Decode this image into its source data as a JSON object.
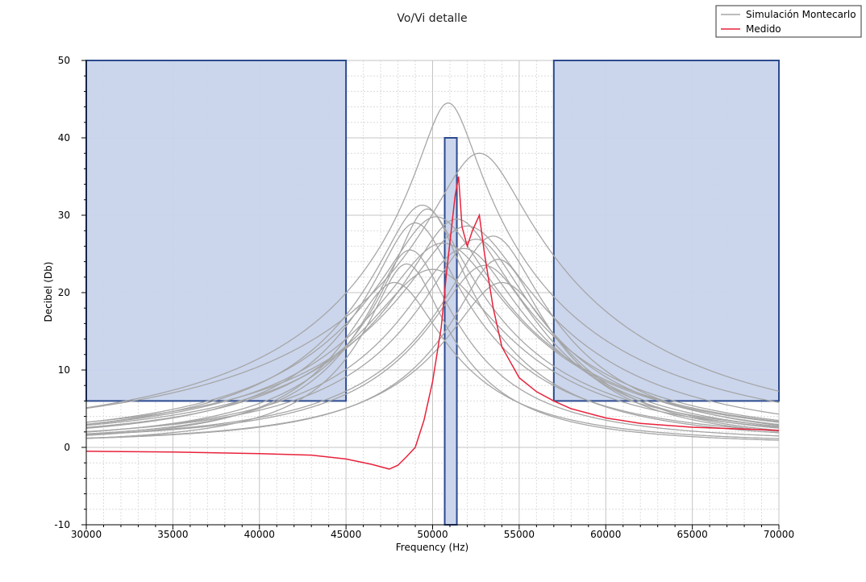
{
  "chart_data": {
    "type": "line",
    "title": "Vo/Vi detalle",
    "xlabel": "Frequency (Hz)",
    "ylabel": "Decibel (Db)",
    "xlim": [
      30000,
      70000
    ],
    "ylim": [
      -10,
      50
    ],
    "x_ticks": [
      "30000",
      "35000",
      "40000",
      "45000",
      "50000",
      "55000",
      "60000",
      "65000",
      "70000"
    ],
    "y_ticks": [
      "-10",
      "0",
      "10",
      "20",
      "30",
      "40",
      "50"
    ],
    "grid": true,
    "legend": {
      "placement": "top-right",
      "entries": [
        {
          "label": "Simulación Montecarlo",
          "color": "#a6a6a6"
        },
        {
          "label": "Medido",
          "color": "#e8223c"
        }
      ]
    },
    "regions": [
      {
        "x": [
          30000,
          45000
        ],
        "y": [
          6,
          50
        ]
      },
      {
        "x": [
          57000,
          70000
        ],
        "y": [
          6,
          50
        ]
      },
      {
        "x": [
          50700,
          51400
        ],
        "y": [
          -10,
          40
        ]
      }
    ],
    "region_colors": {
      "fill": "#c8d4ec",
      "edge": "#2c4a8e"
    },
    "montecarlo": {
      "color": "#a6a6a6",
      "curves": [
        {
          "f0": 50900,
          "peak": 44,
          "bw": 1400,
          "base": 0.5
        },
        {
          "f0": 52700,
          "peak": 37.5,
          "bw": 2200,
          "base": 0.5
        },
        {
          "f0": 49700,
          "peak": 30.5,
          "bw": 1600,
          "base": 0.3
        },
        {
          "f0": 48700,
          "peak": 25,
          "bw": 1800,
          "base": 0.5
        },
        {
          "f0": 48500,
          "peak": 23.5,
          "bw": 1700,
          "base": 0.2
        },
        {
          "f0": 49000,
          "peak": 28.5,
          "bw": 1900,
          "base": 0.5
        },
        {
          "f0": 49400,
          "peak": 31,
          "bw": 2000,
          "base": 0.3
        },
        {
          "f0": 50200,
          "peak": 29.5,
          "bw": 2400,
          "base": 0.3
        },
        {
          "f0": 51400,
          "peak": 29,
          "bw": 2300,
          "base": 0.5
        },
        {
          "f0": 52500,
          "peak": 26.5,
          "bw": 2300,
          "base": 0.4
        },
        {
          "f0": 53500,
          "peak": 27,
          "bw": 2100,
          "base": 0.3
        },
        {
          "f0": 53800,
          "peak": 24,
          "bw": 2000,
          "base": 0.3
        },
        {
          "f0": 52000,
          "peak": 28,
          "bw": 2700,
          "base": 0.6
        },
        {
          "f0": 50600,
          "peak": 26,
          "bw": 2800,
          "base": 0.4
        },
        {
          "f0": 51800,
          "peak": 25.5,
          "bw": 2500,
          "base": 0.2
        },
        {
          "f0": 50000,
          "peak": 22.5,
          "bw": 3000,
          "base": 0.5
        },
        {
          "f0": 54000,
          "peak": 21,
          "bw": 2500,
          "base": 0.3
        },
        {
          "f0": 47800,
          "peak": 21,
          "bw": 2200,
          "base": 0.3
        },
        {
          "f0": 53000,
          "peak": 23,
          "bw": 2400,
          "base": 0.5
        }
      ]
    },
    "measured": {
      "color": "#e8223c",
      "x": [
        30000,
        35000,
        40000,
        43000,
        45000,
        46500,
        47500,
        48000,
        48500,
        49000,
        49500,
        50000,
        50500,
        50800,
        51100,
        51300,
        51500,
        51700,
        52000,
        52300,
        52700,
        53000,
        53500,
        54000,
        55000,
        56000,
        57000,
        58000,
        60000,
        62000,
        65000,
        70000
      ],
      "y": [
        -0.5,
        -0.6,
        -0.8,
        -1.0,
        -1.5,
        -2.2,
        -2.8,
        -2.3,
        -1.2,
        0.0,
        3.5,
        8.5,
        15.5,
        22.5,
        28.5,
        32.5,
        35.0,
        28.5,
        26.0,
        28.0,
        30.0,
        25.0,
        18.0,
        13.0,
        9.0,
        7.2,
        6.0,
        5.0,
        3.8,
        3.1,
        2.6,
        2.2
      ]
    }
  }
}
